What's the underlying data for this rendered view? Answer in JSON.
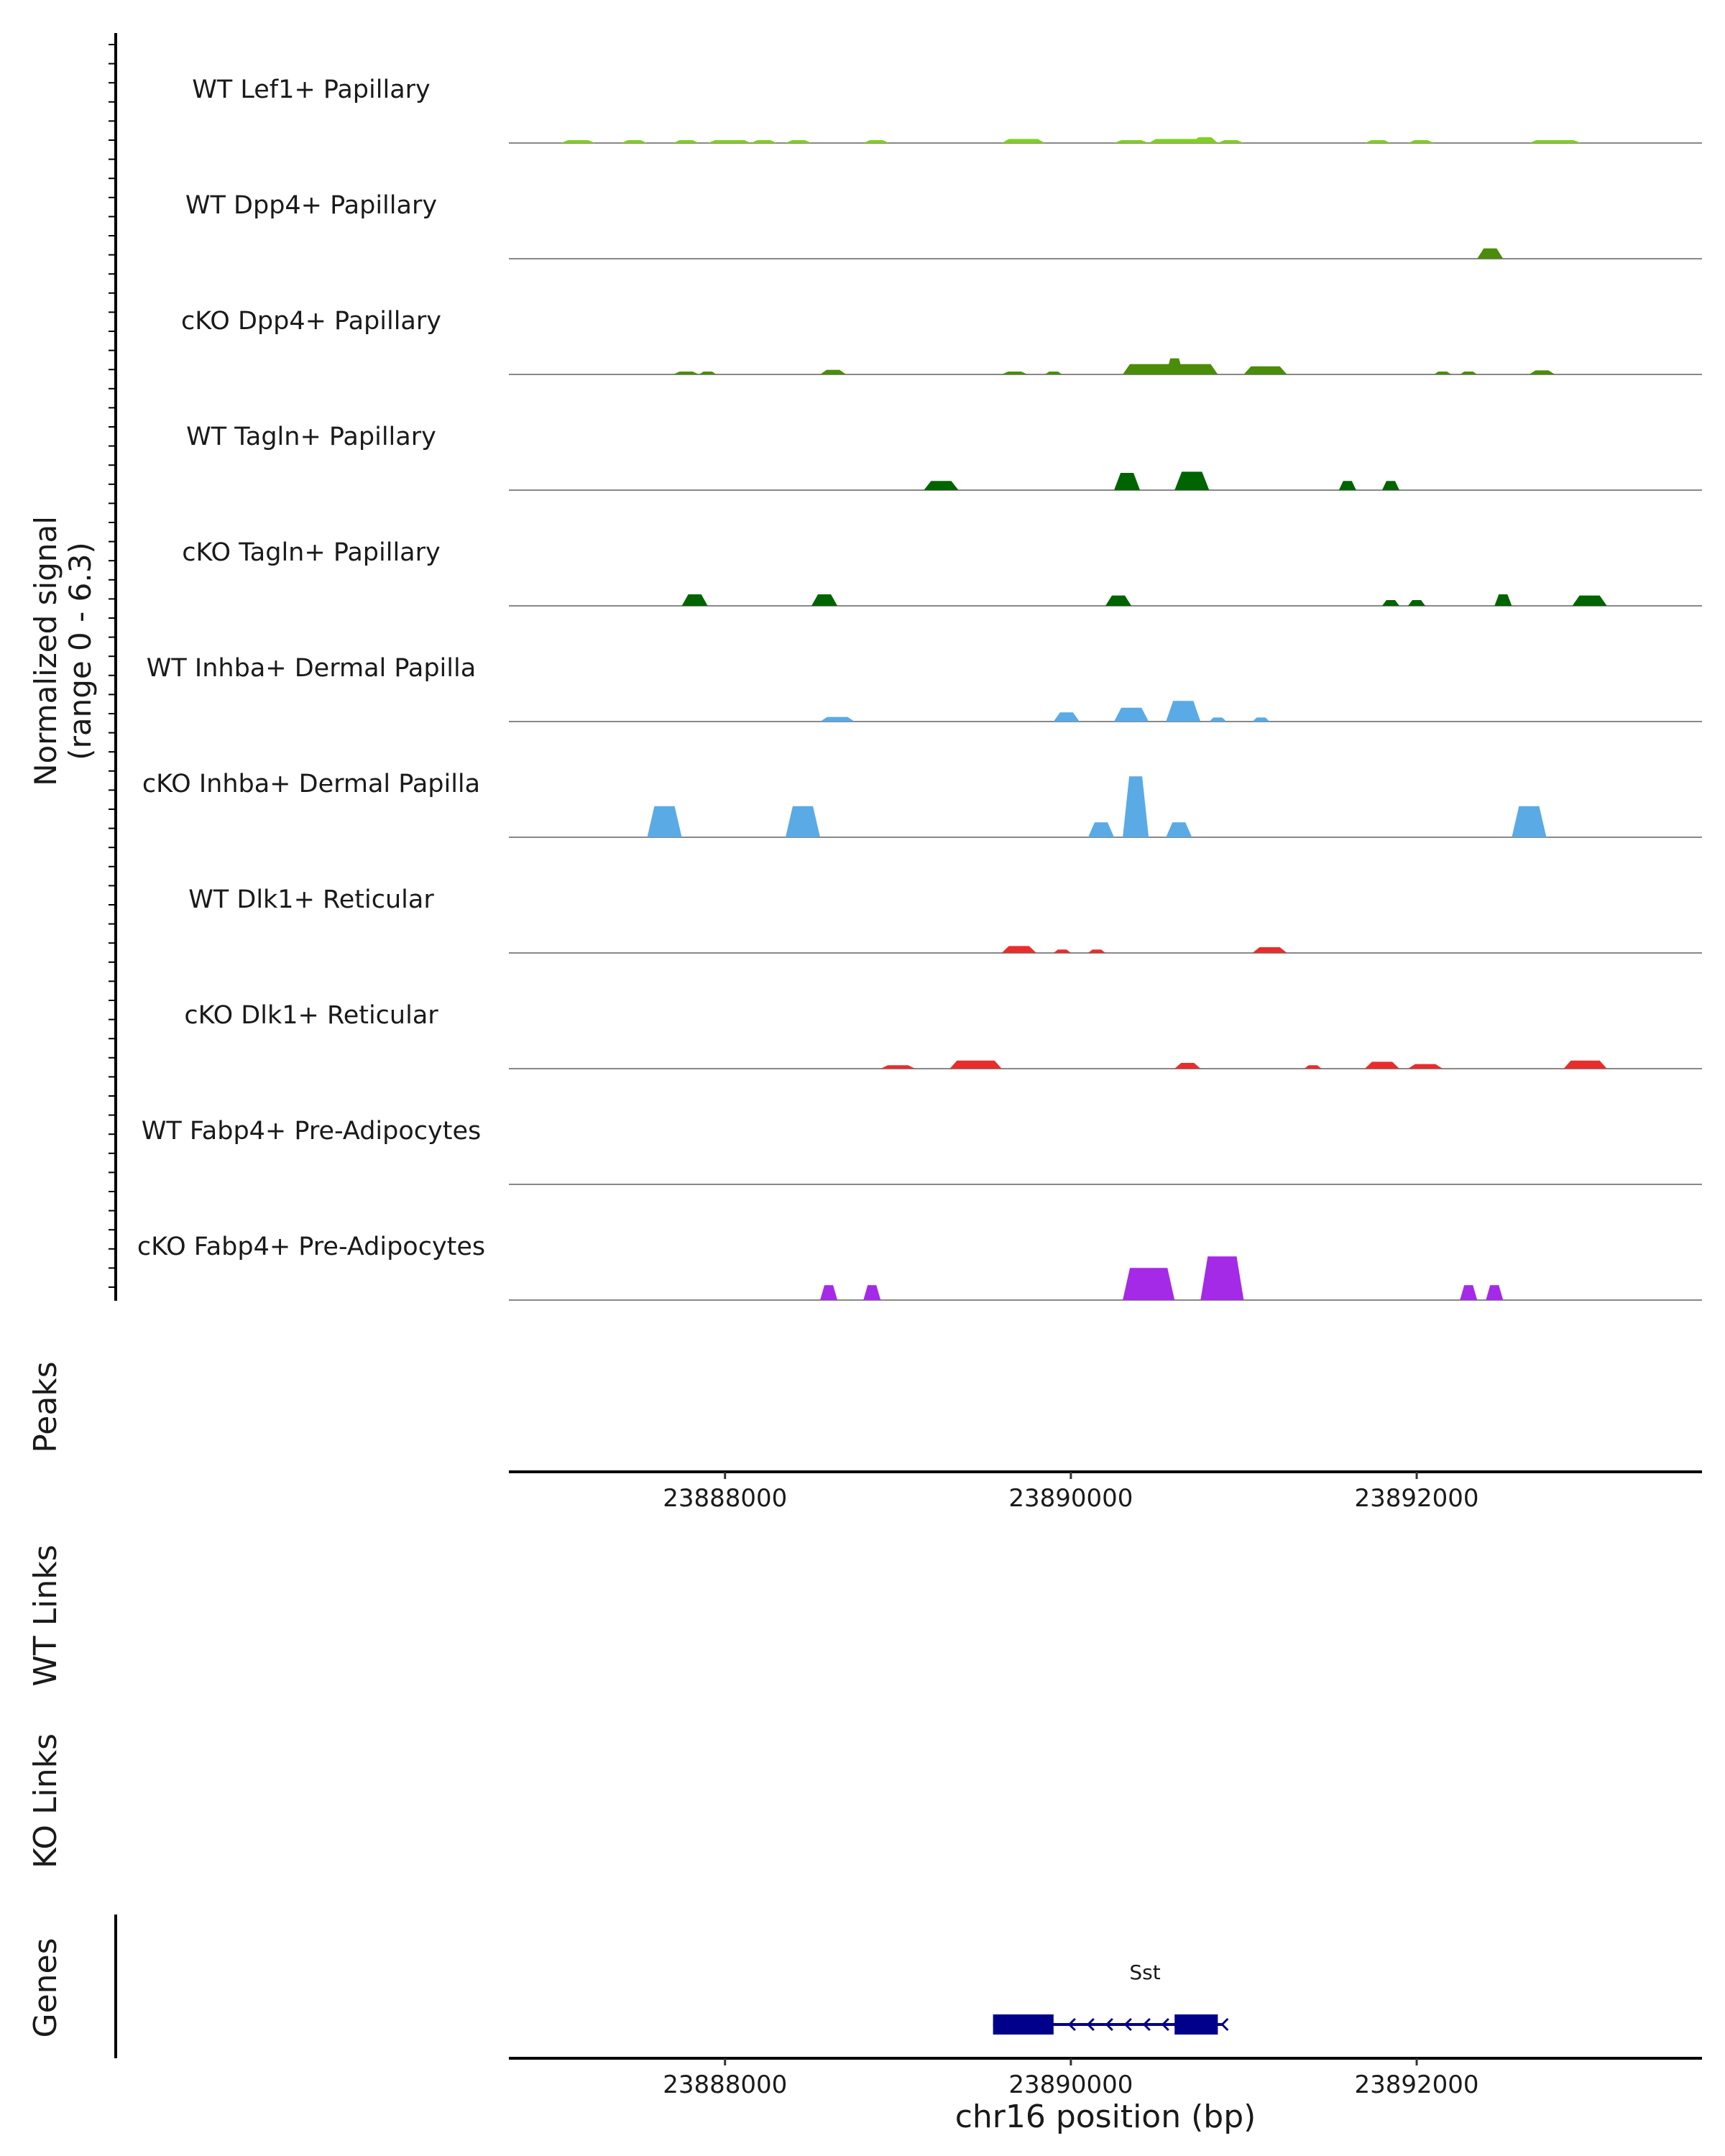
{
  "chart_data": {
    "type": "area",
    "title": "",
    "chromosome": "chr16",
    "xlabel": "chr16 position (bp)",
    "xlim": [
      23886750,
      23893650
    ],
    "x_ticks": [
      23888000,
      23890000,
      23892000
    ],
    "signal_ylabel": "Normalized signal",
    "signal_range_label": "(range 0 - 6.3)",
    "ylim": [
      0,
      6.3
    ],
    "panel_labels": {
      "peaks": "Peaks",
      "wt_links": "WT Links",
      "ko_links": "KO Links",
      "genes": "Genes"
    },
    "tracks": [
      {
        "name": "WT Lef1+ Papillary",
        "color": "#7fd11b",
        "peaks": [
          [
            23887050,
            23887250,
            0.25
          ],
          [
            23887400,
            23887550,
            0.15
          ],
          [
            23887700,
            23887850,
            0.2
          ],
          [
            23887900,
            23888100,
            0.25
          ],
          [
            23888000,
            23888150,
            0.15
          ],
          [
            23888150,
            23888300,
            0.15
          ],
          [
            23888350,
            23888500,
            0.2
          ],
          [
            23888800,
            23888950,
            0.15
          ],
          [
            23889600,
            23889850,
            0.35
          ],
          [
            23890250,
            23890450,
            0.15
          ],
          [
            23890450,
            23890800,
            0.35
          ],
          [
            23890700,
            23890850,
            0.5
          ],
          [
            23890850,
            23891000,
            0.15
          ],
          [
            23891700,
            23891850,
            0.15
          ],
          [
            23891950,
            23892100,
            0.1
          ],
          [
            23892650,
            23892950,
            0.2
          ]
        ]
      },
      {
        "name": "WT Dpp4+ Papillary",
        "color": "#4b8c0a",
        "peaks": [
          [
            23892350,
            23892500,
            0.9
          ]
        ]
      },
      {
        "name": "cKO Dpp4+ Papillary",
        "color": "#4b8c0a",
        "peaks": [
          [
            23887700,
            23887850,
            0.2
          ],
          [
            23887850,
            23887950,
            0.2
          ],
          [
            23888550,
            23888700,
            0.4
          ],
          [
            23889600,
            23889750,
            0.2
          ],
          [
            23889850,
            23889950,
            0.2
          ],
          [
            23890300,
            23890850,
            0.9
          ],
          [
            23890550,
            23890650,
            1.4
          ],
          [
            23891000,
            23891250,
            0.7
          ],
          [
            23892100,
            23892200,
            0.2
          ],
          [
            23892250,
            23892350,
            0.2
          ],
          [
            23892650,
            23892800,
            0.35
          ]
        ]
      },
      {
        "name": "WT Tagln+ Papillary",
        "color": "#006400",
        "peaks": [
          [
            23889150,
            23889350,
            0.8
          ],
          [
            23890250,
            23890400,
            1.5
          ],
          [
            23890600,
            23890800,
            1.6
          ],
          [
            23891550,
            23891650,
            0.8
          ],
          [
            23891800,
            23891900,
            0.8
          ]
        ]
      },
      {
        "name": "cKO Tagln+ Papillary",
        "color": "#006400",
        "peaks": [
          [
            23887750,
            23887900,
            1.0
          ],
          [
            23888500,
            23888650,
            1.0
          ],
          [
            23890200,
            23890350,
            0.9
          ],
          [
            23891800,
            23891900,
            0.5
          ],
          [
            23891950,
            23892050,
            0.5
          ],
          [
            23892450,
            23892550,
            1.0
          ],
          [
            23892900,
            23893100,
            0.9
          ]
        ]
      },
      {
        "name": "WT Inhba+ Dermal Papilla",
        "color": "#5aaae6",
        "peaks": [
          [
            23888550,
            23888750,
            0.4
          ],
          [
            23889900,
            23890050,
            0.8
          ],
          [
            23890250,
            23890450,
            1.2
          ],
          [
            23890550,
            23890750,
            1.8
          ],
          [
            23890800,
            23890900,
            0.35
          ],
          [
            23891050,
            23891150,
            0.35
          ]
        ]
      },
      {
        "name": "cKO Inhba+ Dermal Papilla",
        "color": "#5aaae6",
        "peaks": [
          [
            23887550,
            23887750,
            2.7
          ],
          [
            23888350,
            23888550,
            2.7
          ],
          [
            23890100,
            23890250,
            1.3
          ],
          [
            23890300,
            23890450,
            5.3
          ],
          [
            23890550,
            23890700,
            1.3
          ],
          [
            23892550,
            23892750,
            2.7
          ]
        ]
      },
      {
        "name": "WT Dlk1+ Reticular",
        "color": "#e82d2d",
        "peaks": [
          [
            23889600,
            23889800,
            0.6
          ],
          [
            23889900,
            23890000,
            0.3
          ],
          [
            23890100,
            23890200,
            0.3
          ],
          [
            23891050,
            23891250,
            0.5
          ]
        ]
      },
      {
        "name": "cKO Dlk1+ Reticular",
        "color": "#e82d2d",
        "peaks": [
          [
            23888900,
            23889100,
            0.3
          ],
          [
            23889300,
            23889600,
            0.7
          ],
          [
            23890600,
            23890750,
            0.5
          ],
          [
            23891350,
            23891450,
            0.3
          ],
          [
            23891700,
            23891900,
            0.6
          ],
          [
            23891950,
            23892150,
            0.4
          ],
          [
            23892850,
            23893100,
            0.7
          ]
        ]
      },
      {
        "name": "WT Fabp4+ Pre-Adipocytes",
        "color": "#a52ae8",
        "peaks": []
      },
      {
        "name": "cKO Fabp4+ Pre-Adipocytes",
        "color": "#a52ae8",
        "peaks": [
          [
            23888550,
            23888650,
            1.3
          ],
          [
            23888800,
            23888900,
            1.3
          ],
          [
            23890300,
            23890600,
            2.8
          ],
          [
            23890750,
            23891000,
            3.8
          ],
          [
            23892250,
            23892350,
            1.3
          ],
          [
            23892400,
            23892500,
            1.3
          ]
        ]
      }
    ],
    "gene": {
      "name": "Sst",
      "strand": "-",
      "color": "#00008b",
      "start": 23889550,
      "end": 23890850,
      "exons": [
        [
          23889550,
          23889900
        ],
        [
          23890600,
          23890850
        ]
      ]
    }
  }
}
